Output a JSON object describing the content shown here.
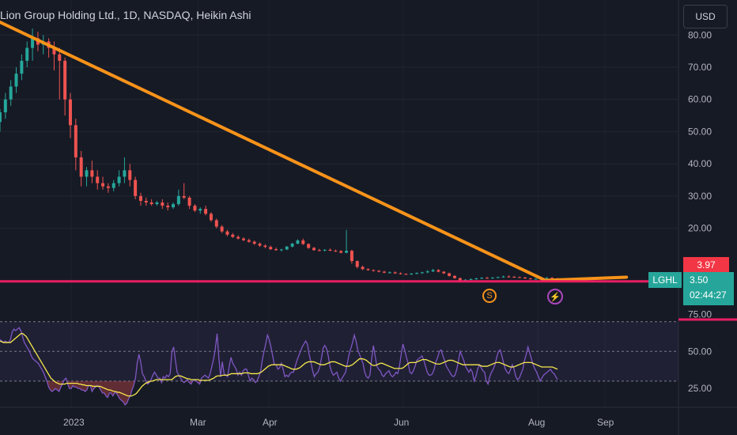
{
  "header": {
    "title": "Lion Group Holding Ltd., 1D, NASDAQ, Heikin Ashi",
    "currency_button": "USD"
  },
  "colors": {
    "background": "#161a25",
    "up": "#26a69a",
    "down": "#ef5350",
    "trendline": "#f7931a",
    "support_line": "#e91e63",
    "rsi_line": "#7e57c2",
    "rsi_ma": "#f5e94c",
    "rsi_band": "#7e57c2"
  },
  "price_axis": {
    "ticks": [
      "80.00",
      "70.00",
      "60.00",
      "50.00",
      "40.00",
      "30.00",
      "20.00"
    ],
    "tick_values": [
      80,
      70,
      60,
      50,
      40,
      30,
      20
    ],
    "range": [
      0,
      84
    ]
  },
  "rsi_axis": {
    "ticks": [
      "75.00",
      "50.00",
      "25.00"
    ],
    "tick_values": [
      75,
      50,
      25
    ],
    "range": [
      15,
      80
    ]
  },
  "time_axis": {
    "labels": [
      "2023",
      "Mar",
      "Apr",
      "Jun",
      "Aug",
      "Sep"
    ]
  },
  "price_tags": {
    "high_value": "3.97",
    "symbol": "LGHL",
    "last_price": "3.50",
    "countdown": "02:44:27"
  },
  "markers": {
    "split_marker": "S",
    "earnings_marker": "⚡"
  },
  "chart_data": [
    {
      "type": "candlestick",
      "style": "Heikin Ashi",
      "scale": "linear",
      "candles": [
        [
          53,
          57,
          50,
          56
        ],
        [
          56,
          62,
          54,
          60
        ],
        [
          60,
          66,
          58,
          64
        ],
        [
          64,
          70,
          62,
          68
        ],
        [
          68,
          74,
          66,
          72
        ],
        [
          72,
          78,
          70,
          76
        ],
        [
          76,
          82,
          72,
          79
        ],
        [
          79,
          81,
          75,
          77
        ],
        [
          77,
          80,
          74,
          78
        ],
        [
          78,
          79,
          73,
          76
        ],
        [
          76,
          78,
          69,
          74
        ],
        [
          74,
          76,
          60,
          72
        ],
        [
          72,
          73,
          55,
          60
        ],
        [
          60,
          62,
          48,
          52
        ],
        [
          52,
          54,
          38,
          42
        ],
        [
          42,
          44,
          33,
          36
        ],
        [
          36,
          39,
          33,
          38
        ],
        [
          38,
          41,
          34,
          36
        ],
        [
          36,
          38,
          32,
          34
        ],
        [
          34,
          36,
          32,
          33
        ],
        [
          33,
          34,
          31,
          32.5
        ],
        [
          32.5,
          35,
          31.5,
          34
        ],
        [
          34,
          38,
          33,
          36
        ],
        [
          36,
          42,
          34,
          38
        ],
        [
          38,
          40,
          33,
          35
        ],
        [
          35,
          36,
          29,
          30
        ],
        [
          30,
          31,
          27,
          28.5
        ],
        [
          28.5,
          29.5,
          27,
          28
        ],
        [
          28,
          29,
          27,
          27.5
        ],
        [
          27.5,
          28.5,
          27,
          28
        ],
        [
          28,
          29,
          26,
          27
        ],
        [
          27,
          28,
          25.5,
          26.5
        ],
        [
          26.5,
          28,
          26,
          27.5
        ],
        [
          27.5,
          32,
          27,
          30
        ],
        [
          30,
          34,
          29,
          29.5
        ],
        [
          29.5,
          30,
          26,
          27
        ],
        [
          27,
          27.5,
          25,
          25.5
        ],
        [
          25.5,
          26.5,
          24.5,
          26
        ],
        [
          26,
          27,
          24,
          24.5
        ],
        [
          24.5,
          25,
          22,
          22.5
        ],
        [
          22.5,
          23,
          20,
          20.5
        ],
        [
          20.5,
          21,
          18.5,
          19
        ],
        [
          19,
          19.5,
          17.5,
          18
        ],
        [
          18,
          18.5,
          17,
          17.3
        ],
        [
          17.3,
          17.8,
          16.5,
          16.8
        ],
        [
          16.8,
          17.2,
          16,
          16.3
        ],
        [
          16.3,
          16.8,
          15.5,
          15.8
        ],
        [
          15.8,
          16.2,
          14.8,
          15.2
        ],
        [
          15.2,
          15.6,
          14.2,
          14.6
        ],
        [
          14.6,
          15,
          13.8,
          14.2
        ],
        [
          14.2,
          14.6,
          13.2,
          13.5
        ],
        [
          13.5,
          14,
          13,
          13.2
        ],
        [
          13.2,
          13.6,
          12.8,
          13.4
        ],
        [
          13.4,
          14.5,
          13.2,
          14.3
        ],
        [
          14.3,
          15.5,
          14,
          15.2
        ],
        [
          15.2,
          16.6,
          15,
          16.2
        ],
        [
          16.2,
          16.8,
          14.8,
          15.1
        ],
        [
          15.1,
          15.3,
          13.6,
          13.9
        ],
        [
          13.9,
          14.2,
          13,
          13.2
        ],
        [
          13.2,
          13.6,
          12.8,
          13.1
        ],
        [
          13.1,
          13.5,
          12.8,
          13.3
        ],
        [
          13.3,
          13.7,
          12.9,
          13
        ],
        [
          13,
          13.4,
          12.6,
          12.9
        ],
        [
          12.9,
          13.2,
          12.2,
          12.4
        ],
        [
          12.4,
          19.5,
          12.2,
          13
        ],
        [
          13,
          13.3,
          9,
          9.8
        ],
        [
          9.8,
          10,
          7.5,
          8
        ],
        [
          8,
          8.4,
          7,
          7.3
        ],
        [
          7.3,
          7.6,
          6.8,
          7
        ],
        [
          7,
          7.2,
          6.5,
          6.8
        ],
        [
          6.8,
          7,
          6.3,
          6.5
        ],
        [
          6.5,
          6.8,
          6,
          6.2
        ],
        [
          6.2,
          6.6,
          5.9,
          6.3
        ],
        [
          6.3,
          6.6,
          5.8,
          6
        ],
        [
          6,
          6.3,
          5.6,
          5.8
        ],
        [
          5.8,
          6,
          5.5,
          5.7
        ],
        [
          5.7,
          6.1,
          5.5,
          5.9
        ],
        [
          5.9,
          6.3,
          5.7,
          6.1
        ],
        [
          6.1,
          6.5,
          5.8,
          6.3
        ],
        [
          6.3,
          7,
          6,
          6.6
        ],
        [
          6.6,
          7.4,
          6.4,
          7
        ],
        [
          7,
          7.3,
          6.3,
          6.5
        ],
        [
          6.5,
          6.7,
          5.8,
          6
        ],
        [
          6,
          6.2,
          5,
          5.2
        ],
        [
          5.2,
          5.4,
          4.3,
          4.5
        ],
        [
          4.5,
          4.7,
          3.6,
          3.8
        ],
        [
          3.8,
          4.2,
          3.6,
          4
        ],
        [
          4,
          4.4,
          3.9,
          4.2
        ],
        [
          4.2,
          4.6,
          4,
          4.4
        ],
        [
          4.4,
          4.8,
          4.2,
          4.6
        ],
        [
          4.6,
          4.9,
          4.3,
          4.5
        ],
        [
          4.5,
          4.8,
          4.3,
          4.7
        ],
        [
          4.7,
          5,
          4.5,
          4.8
        ],
        [
          4.8,
          5.3,
          4.6,
          5
        ],
        [
          5,
          5.4,
          4.7,
          4.9
        ],
        [
          4.9,
          5.2,
          4.6,
          4.8
        ],
        [
          4.8,
          5,
          4.5,
          4.7
        ],
        [
          4.7,
          4.9,
          4.3,
          4.4
        ],
        [
          4.4,
          4.6,
          4.1,
          4.2
        ],
        [
          4.2,
          4.5,
          4,
          4.3
        ],
        [
          4.3,
          4.8,
          4.1,
          4.5
        ],
        [
          4.5,
          4.9,
          4.3,
          4.6
        ],
        [
          4.6,
          4.8,
          4.3,
          4.4
        ],
        [
          4.4,
          4.6,
          4.2,
          4.3
        ]
      ]
    },
    {
      "type": "line",
      "name": "trendline",
      "x": [
        0,
        0.74
      ],
      "y": [
        84,
        3.8
      ]
    },
    {
      "type": "line",
      "name": "trendline-2",
      "x": [
        0.74,
        0.85
      ],
      "y": [
        3.8,
        4.8
      ]
    },
    {
      "type": "line",
      "name": "horizontal-level",
      "y": 3.5
    },
    {
      "type": "line",
      "name": "RSI",
      "scale": "linear",
      "ylim": [
        15,
        80
      ],
      "band": [
        30,
        70
      ],
      "rsi": [
        58,
        57,
        56,
        57,
        56,
        56,
        58,
        63,
        65,
        64,
        65,
        66,
        64,
        60,
        56,
        54,
        52,
        50,
        47,
        45,
        44,
        43,
        42,
        40,
        38,
        36,
        33,
        30,
        26,
        24,
        23,
        24,
        25,
        24,
        23,
        26,
        28,
        31,
        32,
        28,
        25,
        25,
        27,
        26,
        26,
        25,
        25,
        24,
        24,
        23,
        24,
        27,
        27,
        23,
        25,
        26,
        27,
        26,
        24,
        22,
        22,
        20,
        19,
        22,
        22,
        20,
        22,
        22,
        20,
        18,
        17,
        16,
        14,
        15,
        18,
        20,
        24,
        27,
        32,
        42,
        48,
        43,
        35,
        33,
        30,
        28,
        29,
        31,
        34,
        36,
        34,
        32,
        32,
        29,
        33,
        32,
        34,
        33,
        35,
        50,
        53,
        44,
        36,
        34,
        32,
        30,
        29,
        30,
        31,
        29,
        28,
        30,
        31,
        30,
        29,
        28,
        32,
        33,
        34,
        33,
        32,
        35,
        40,
        45,
        52,
        62,
        46,
        33,
        43,
        35,
        34,
        33,
        40,
        46,
        42,
        40,
        38,
        34,
        36,
        34,
        37,
        38,
        38,
        34,
        30,
        32,
        31,
        29,
        30,
        33,
        36,
        44,
        50,
        55,
        61,
        58,
        53,
        47,
        41,
        41,
        38,
        39,
        42,
        38,
        33,
        34,
        33,
        35,
        36,
        36,
        40,
        44,
        47,
        50,
        53,
        55,
        57,
        55,
        48,
        43,
        37,
        33,
        35,
        36,
        39,
        45,
        52,
        54,
        52,
        47,
        40,
        36,
        34,
        35,
        36,
        32,
        30,
        32,
        34,
        36,
        42,
        48,
        52,
        56,
        61,
        57,
        51,
        48,
        45,
        42,
        36,
        33,
        32,
        34,
        45,
        54,
        47,
        40,
        38,
        37,
        34,
        33,
        35,
        36,
        37,
        34,
        33,
        34,
        36,
        35,
        40,
        48,
        55,
        51,
        46,
        42,
        36,
        35,
        37,
        40,
        44,
        45,
        46,
        47,
        44,
        40,
        36,
        34,
        34,
        35,
        38,
        43,
        46,
        50,
        51,
        47,
        44,
        40,
        38,
        36,
        34,
        33,
        34,
        38,
        44,
        50,
        47,
        44,
        40,
        38,
        36,
        38,
        36,
        30,
        33,
        38,
        41,
        39,
        37,
        36,
        30,
        28,
        33,
        36,
        38,
        41,
        46,
        50,
        51,
        47,
        42,
        38,
        36,
        35,
        38,
        41,
        38,
        33,
        31,
        32,
        35,
        38,
        44,
        48,
        53,
        49,
        45,
        41,
        38,
        36,
        33,
        30,
        32,
        34,
        35,
        36,
        37,
        38,
        36,
        35,
        33,
        31
      ],
      "rsi_ma": [
        57,
        56.5,
        56,
        56,
        56,
        56,
        56,
        57,
        58,
        59,
        60,
        61,
        62,
        62,
        61,
        60,
        58,
        56,
        54,
        52,
        50,
        48,
        46,
        44,
        42,
        40,
        38,
        36,
        34,
        32,
        31,
        30,
        29,
        28.5,
        28,
        28,
        28,
        28,
        28.5,
        28.5,
        28.5,
        28.5,
        28.5,
        28.5,
        28.5,
        28,
        28,
        27.5,
        27.5,
        27,
        27,
        27,
        27,
        26.5,
        26.5,
        26.5,
        26.5,
        26.5,
        26,
        25.5,
        25,
        24.5,
        24,
        24,
        23.5,
        23,
        23,
        22.5,
        22.5,
        22,
        21.5,
        21,
        20.5,
        20,
        20,
        20,
        20.5,
        21,
        22,
        23.5,
        25,
        26.5,
        27.5,
        28.5,
        29,
        29.5,
        30,
        30,
        30.5,
        31,
        31,
        31,
        31,
        31,
        31,
        31,
        31,
        31,
        31,
        32,
        33,
        33.5,
        33.5,
        33.5,
        33,
        32.5,
        32,
        31.5,
        31.5,
        31,
        31,
        31,
        31,
        31,
        30.5,
        30.5,
        30.5,
        30.5,
        30.5,
        30.5,
        31,
        31.5,
        32,
        33,
        33.5,
        33.5,
        33.5,
        34,
        34,
        34,
        34,
        34.5,
        35,
        35,
        35,
        35,
        35,
        35,
        35,
        35.5,
        35.5,
        35.5,
        35.5,
        35,
        35,
        35,
        35,
        35,
        35.5,
        36,
        37,
        38,
        39,
        40,
        40.5,
        41,
        41,
        41,
        41,
        41,
        41,
        41,
        40.5,
        40,
        39.5,
        39,
        38.5,
        38,
        38,
        38,
        38.5,
        39,
        40,
        41,
        42,
        42.5,
        43,
        43,
        43,
        43,
        42.5,
        42,
        41.5,
        41,
        41,
        41,
        41.5,
        42,
        42.5,
        43,
        43,
        43,
        42.5,
        42,
        41.5,
        41,
        40.5,
        40,
        40,
        40,
        40.5,
        41,
        42,
        43,
        44,
        45,
        45,
        45,
        44.5,
        44,
        43,
        42,
        41,
        40.5,
        40.5,
        41,
        41.5,
        42,
        42,
        41.5,
        41,
        40.5,
        40,
        39.5,
        39,
        38.5,
        38.5,
        38.5,
        38.5,
        38.5,
        39,
        40,
        41,
        42,
        42.5,
        42.5,
        42.5,
        42.5,
        43,
        43.5,
        44,
        44.5,
        44.5,
        44.5,
        44,
        43.5,
        43,
        42.5,
        42,
        41.5,
        41.5,
        41.5,
        42,
        42.5,
        43,
        43.5,
        44,
        44,
        44,
        43.5,
        43,
        42.5,
        42,
        41.5,
        41,
        41,
        41,
        41,
        41,
        41,
        41,
        41,
        41,
        41,
        40.5,
        40,
        40,
        40,
        40,
        40.5,
        41,
        41.5,
        42,
        42.5,
        42.5,
        42.5,
        42,
        41.5,
        41,
        40.5,
        40,
        39.5,
        39.5,
        39.5,
        40,
        40.5,
        41,
        41.5,
        42,
        42.5,
        42.5,
        42.5,
        42.5,
        42.5,
        42,
        41.5,
        41,
        40.5,
        40,
        39.5,
        39.5,
        39.5,
        39.5,
        39.5,
        39.5,
        39.5,
        39,
        38.5,
        38
      ]
    }
  ]
}
